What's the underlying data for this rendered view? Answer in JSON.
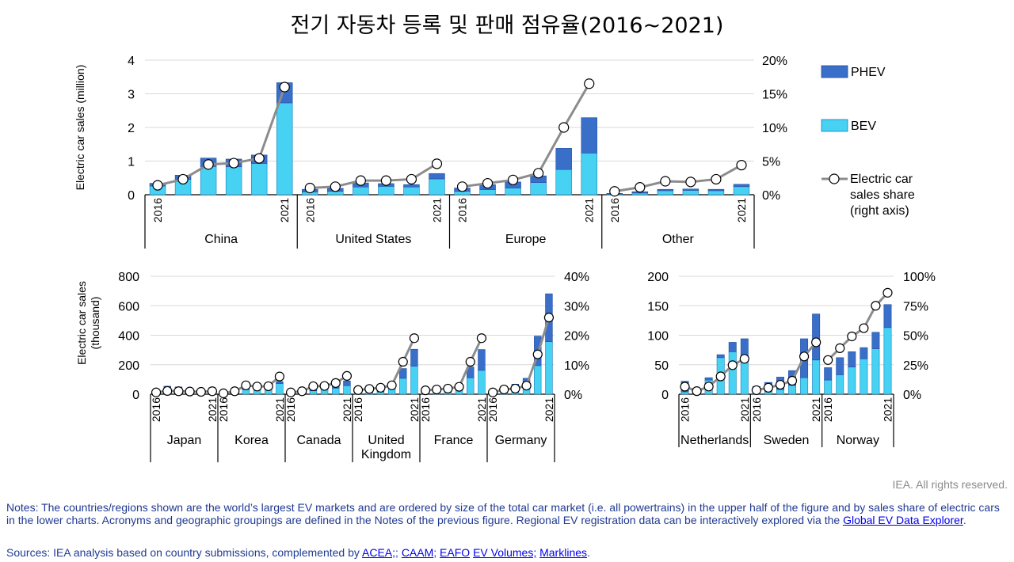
{
  "title": "전기 자동차 등록 및 판매 점유율(2016~2021)",
  "copyright": "IEA. All rights reserved.",
  "notes": {
    "text_before": "Notes: The countries/regions shown are the world’s largest EV markets and are ordered by size of the total car market (i.e. all powertrains) in the upper half of the figure and by sales share of electric cars in the lower charts. Acronyms and geographic groupings are defined in the Notes of the previous figure. Regional EV registration data can be interactively explored via the ",
    "link": "Global EV Data Explorer",
    "text_after": "."
  },
  "sources": {
    "prefix": "Sources: IEA analysis based on country submissions, complemented by ",
    "links": [
      "ACEA;",
      "CAAM",
      "EAFO",
      "EV Volumes;",
      "Marklines"
    ],
    "separators": [
      "",
      "; ",
      "; ",
      " ",
      ""
    ],
    "suffix": "."
  },
  "legend": {
    "phev": "PHEV",
    "bev": "BEV",
    "share": "Electric car sales share (right axis)"
  },
  "colors": {
    "phev": "#3a6fc9",
    "bev": "#47d1f2",
    "line": "#8c8c8c",
    "axis": "#000000",
    "grid": "#d9d9d9"
  },
  "chart_data": [
    {
      "type": "bar",
      "subtype": "stacked bar with line on secondary axis",
      "ylabel": "Electric car sales (million)",
      "ylim": [
        0,
        4
      ],
      "yticks": [
        "0",
        "1",
        "2",
        "3",
        "4"
      ],
      "y2lim": [
        0,
        20
      ],
      "y2ticks": [
        "0%",
        "5%",
        "10%",
        "15%",
        "20%"
      ],
      "year_labels": [
        "2016",
        "2021"
      ],
      "groups": [
        {
          "name": "China",
          "bev": [
            0.26,
            0.46,
            0.84,
            0.83,
            0.93,
            2.73
          ],
          "phev": [
            0.08,
            0.12,
            0.25,
            0.23,
            0.25,
            0.6
          ],
          "share": [
            1.4,
            2.3,
            4.5,
            4.7,
            5.4,
            16.0
          ]
        },
        {
          "name": "United States",
          "bev": [
            0.08,
            0.1,
            0.23,
            0.25,
            0.23,
            0.47
          ],
          "phev": [
            0.08,
            0.09,
            0.12,
            0.08,
            0.07,
            0.16
          ],
          "share": [
            1.0,
            1.2,
            2.1,
            2.1,
            2.3,
            4.6
          ]
        },
        {
          "name": "Europe",
          "bev": [
            0.1,
            0.15,
            0.2,
            0.36,
            0.75,
            1.24
          ],
          "phev": [
            0.1,
            0.15,
            0.18,
            0.2,
            0.63,
            1.05
          ],
          "share": [
            1.2,
            1.7,
            2.2,
            3.2,
            10.0,
            16.5
          ]
        },
        {
          "name": "Other",
          "bev": [
            0.02,
            0.05,
            0.12,
            0.13,
            0.12,
            0.24
          ],
          "phev": [
            0.02,
            0.04,
            0.04,
            0.04,
            0.04,
            0.07
          ],
          "share": [
            0.5,
            1.1,
            2.0,
            1.9,
            2.3,
            4.4
          ]
        }
      ]
    },
    {
      "type": "bar",
      "subtype": "stacked bar with line on secondary axis",
      "ylabel": "Electric car sales (thousand)",
      "ylim": [
        0,
        800
      ],
      "yticks": [
        "0",
        "200",
        "400",
        "600",
        "800"
      ],
      "y2lim": [
        0,
        40
      ],
      "y2ticks": [
        "0%",
        "10%",
        "20%",
        "30%",
        "40%"
      ],
      "year_labels": [
        "2016",
        "2021"
      ],
      "groups": [
        {
          "name": "Japan",
          "bev": [
            15,
            18,
            26,
            21,
            15,
            21
          ],
          "phev": [
            9,
            36,
            23,
            18,
            14,
            23
          ],
          "share": [
            0.6,
            1.1,
            1.0,
            0.9,
            0.8,
            1.0
          ]
        },
        {
          "name": "Korea",
          "bev": [
            5,
            14,
            32,
            35,
            46,
            72
          ],
          "phev": [
            1,
            1,
            5,
            4,
            5,
            14
          ],
          "share": [
            0.3,
            1.0,
            3.0,
            2.6,
            2.7,
            6.0
          ]
        },
        {
          "name": "Canada",
          "bev": [
            5,
            9,
            23,
            35,
            41,
            58
          ],
          "phev": [
            6,
            11,
            27,
            21,
            20,
            32
          ],
          "share": [
            0.6,
            1.0,
            2.7,
            2.8,
            3.8,
            6.2
          ]
        },
        {
          "name": "United Kingdom",
          "bev": [
            11,
            14,
            16,
            37,
            108,
            190
          ],
          "phev": [
            27,
            33,
            44,
            37,
            66,
            115
          ],
          "share": [
            1.4,
            1.8,
            2.2,
            3.0,
            11.0,
            19.0
          ]
        },
        {
          "name": "France",
          "bev": [
            22,
            25,
            31,
            43,
            111,
            162
          ],
          "phev": [
            7,
            11,
            14,
            19,
            74,
            141
          ],
          "share": [
            1.3,
            1.6,
            1.9,
            2.5,
            11.0,
            19.0
          ]
        },
        {
          "name": "Germany",
          "bev": [
            11,
            25,
            36,
            63,
            194,
            356
          ],
          "phev": [
            14,
            29,
            32,
            45,
            200,
            325
          ],
          "share": [
            0.6,
            1.6,
            1.9,
            2.9,
            13.5,
            26.0
          ]
        }
      ]
    },
    {
      "type": "bar",
      "subtype": "stacked bar with line on secondary axis",
      "ylim": [
        0,
        200
      ],
      "yticks": [
        "0",
        "50",
        "100",
        "150",
        "200"
      ],
      "y2lim": [
        0,
        100
      ],
      "y2ticks": [
        "0%",
        "25%",
        "50%",
        "75%",
        "100%"
      ],
      "year_labels": [
        "2016",
        "2021"
      ],
      "groups": [
        {
          "name": "Netherlands",
          "bev": [
            4,
            8,
            24,
            62,
            72,
            56
          ],
          "phev": [
            18,
            2,
            4,
            5,
            16,
            38
          ],
          "share": [
            6.4,
            2.6,
            6.5,
            15.1,
            24.6,
            30.0
          ]
        },
        {
          "name": "Sweden",
          "bev": [
            3,
            5,
            8,
            15,
            28,
            58
          ],
          "phev": [
            10,
            15,
            21,
            25,
            66,
            78
          ],
          "share": [
            3.4,
            5.5,
            8.0,
            11.4,
            32.0,
            44.0
          ]
        },
        {
          "name": "Norway",
          "bev": [
            24,
            33,
            46,
            60,
            77,
            113
          ],
          "phev": [
            21,
            29,
            26,
            19,
            28,
            39
          ],
          "share": [
            29.0,
            39.0,
            49.0,
            56.0,
            75.0,
            86.0
          ]
        }
      ]
    }
  ]
}
